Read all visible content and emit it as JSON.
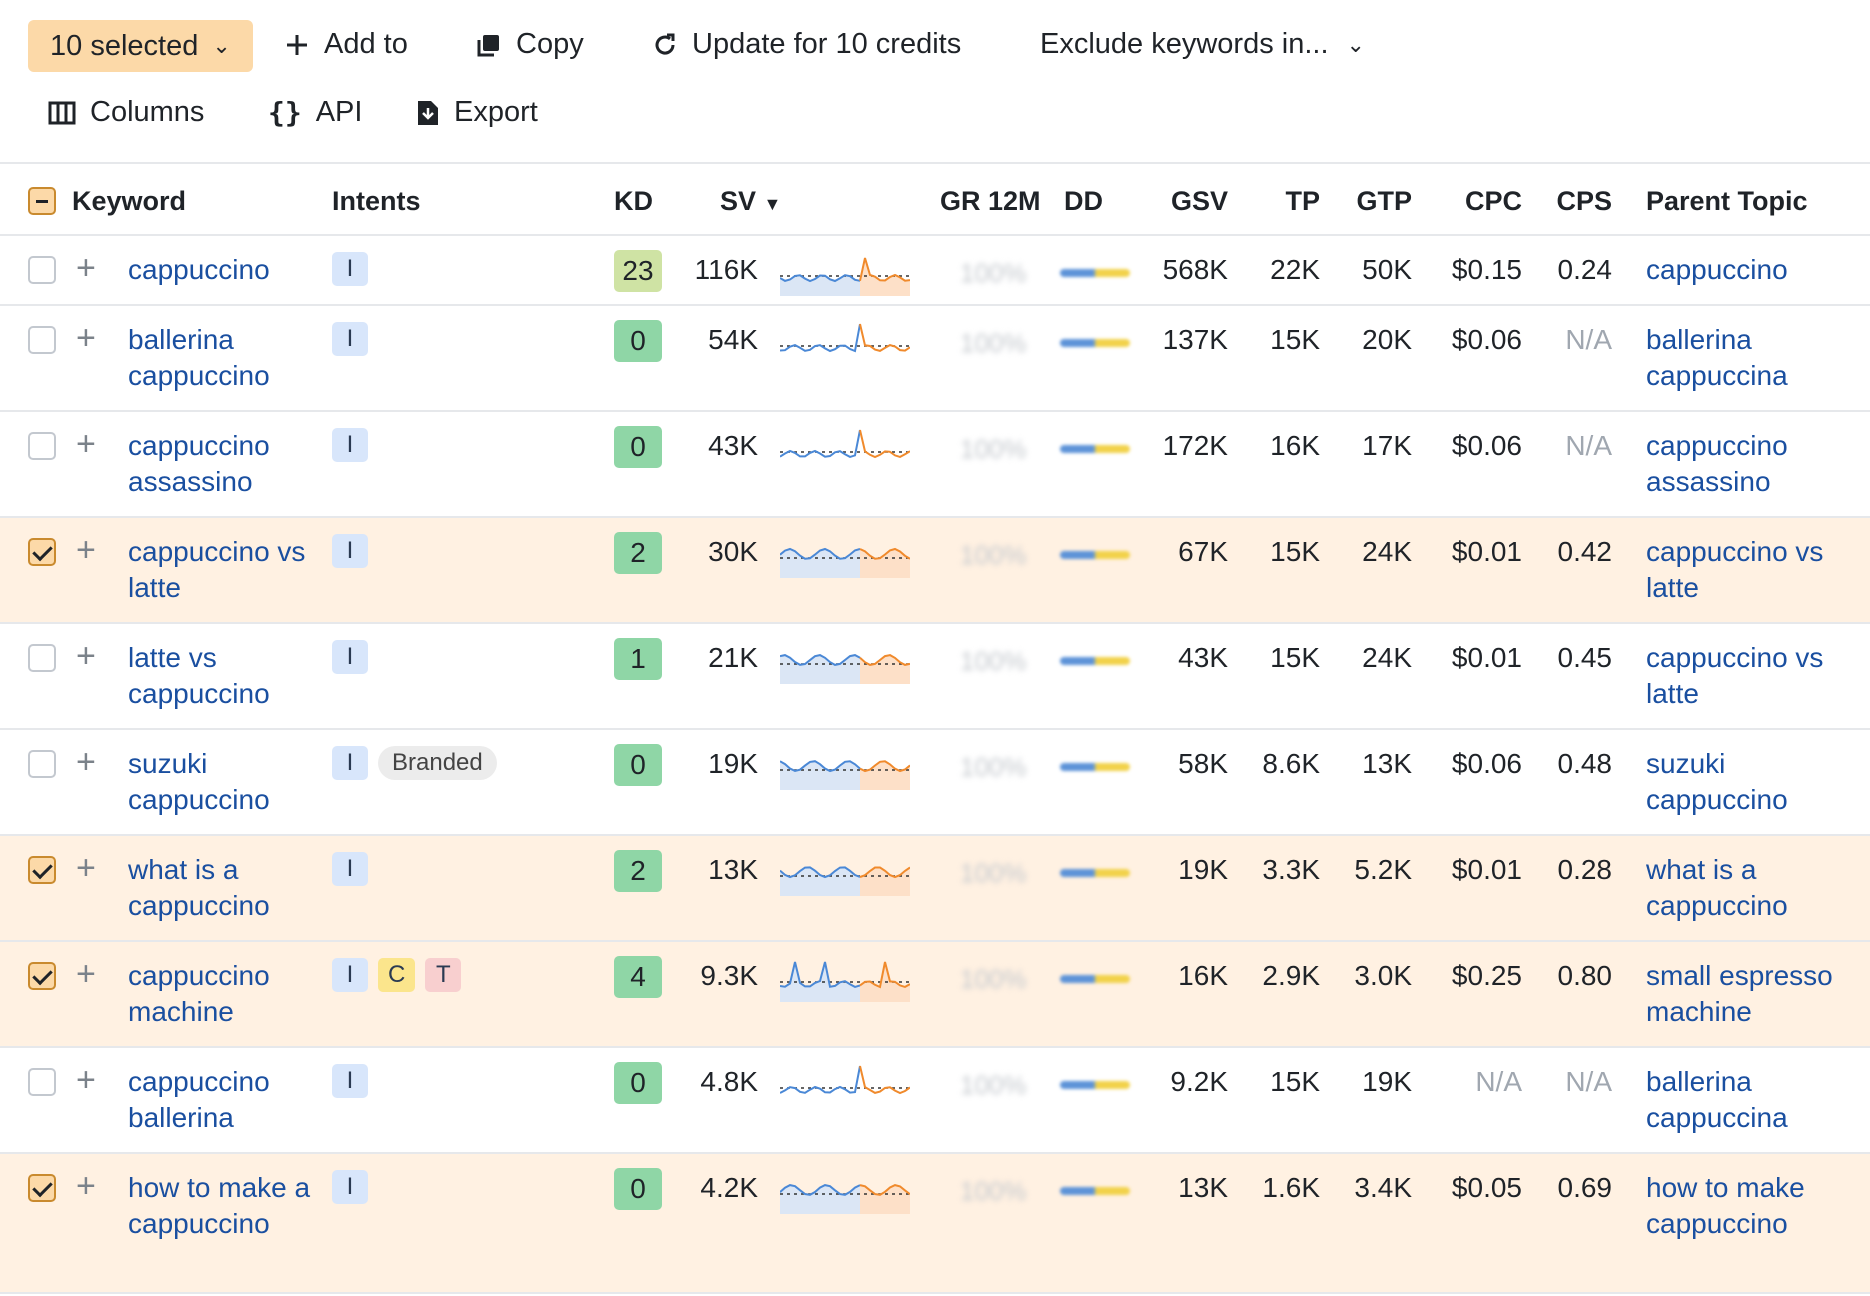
{
  "toolbar": {
    "selected_label": "10 selected",
    "add_to_label": "Add to",
    "copy_label": "Copy",
    "update_label": "Update for 10 credits",
    "exclude_label": "Exclude keywords in...",
    "columns_label": "Columns",
    "api_label": "API",
    "export_label": "Export"
  },
  "table": {
    "headers": {
      "keyword": "Keyword",
      "intents": "Intents",
      "kd": "KD",
      "sv": "SV",
      "gr12m": "GR 12M",
      "dd": "DD",
      "gsv": "GSV",
      "tp": "TP",
      "gtp": "GTP",
      "cpc": "CPC",
      "cps": "CPS",
      "parent_topic": "Parent Topic"
    },
    "rows": [
      {
        "selected": false,
        "keyword": "cappuccino",
        "intents": [
          "I"
        ],
        "kd": "23",
        "sv": "116K",
        "gr12m": "100%",
        "gsv": "568K",
        "tp": "22K",
        "gtp": "50K",
        "cpc": "$0.15",
        "cps": "0.24",
        "parent_topic": "cappuccino"
      },
      {
        "selected": false,
        "keyword": "ballerina cappuccino",
        "intents": [
          "I"
        ],
        "kd": "0",
        "sv": "54K",
        "gr12m": "100%",
        "gsv": "137K",
        "tp": "15K",
        "gtp": "20K",
        "cpc": "$0.06",
        "cps": "N/A",
        "parent_topic": "ballerina cappuccina"
      },
      {
        "selected": false,
        "keyword": "cappuccino assassino",
        "intents": [
          "I"
        ],
        "kd": "0",
        "sv": "43K",
        "gr12m": "100%",
        "gsv": "172K",
        "tp": "16K",
        "gtp": "17K",
        "cpc": "$0.06",
        "cps": "N/A",
        "parent_topic": "cappuccino assassino"
      },
      {
        "selected": true,
        "keyword": "cappuccino vs latte",
        "intents": [
          "I"
        ],
        "kd": "2",
        "sv": "30K",
        "gr12m": "100%",
        "gsv": "67K",
        "tp": "15K",
        "gtp": "24K",
        "cpc": "$0.01",
        "cps": "0.42",
        "parent_topic": "cappuccino vs latte"
      },
      {
        "selected": false,
        "keyword": "latte vs cappuccino",
        "intents": [
          "I"
        ],
        "kd": "1",
        "sv": "21K",
        "gr12m": "100%",
        "gsv": "43K",
        "tp": "15K",
        "gtp": "24K",
        "cpc": "$0.01",
        "cps": "0.45",
        "parent_topic": "cappuccino vs latte"
      },
      {
        "selected": false,
        "keyword": "suzuki cappuccino",
        "intents": [
          "I",
          "Branded"
        ],
        "kd": "0",
        "sv": "19K",
        "gr12m": "100%",
        "gsv": "58K",
        "tp": "8.6K",
        "gtp": "13K",
        "cpc": "$0.06",
        "cps": "0.48",
        "parent_topic": "suzuki cappuccino"
      },
      {
        "selected": true,
        "keyword": "what is a cappuccino",
        "intents": [
          "I"
        ],
        "kd": "2",
        "sv": "13K",
        "gr12m": "100%",
        "gsv": "19K",
        "tp": "3.3K",
        "gtp": "5.2K",
        "cpc": "$0.01",
        "cps": "0.28",
        "parent_topic": "what is a cappuccino"
      },
      {
        "selected": true,
        "keyword": "cappuccino machine",
        "intents": [
          "I",
          "C",
          "T"
        ],
        "kd": "4",
        "sv": "9.3K",
        "gr12m": "100%",
        "gsv": "16K",
        "tp": "2.9K",
        "gtp": "3.0K",
        "cpc": "$0.25",
        "cps": "0.80",
        "parent_topic": "small espresso machine"
      },
      {
        "selected": false,
        "keyword": "cappuccino ballerina",
        "intents": [
          "I"
        ],
        "kd": "0",
        "sv": "4.8K",
        "gr12m": "100%",
        "gsv": "9.2K",
        "tp": "15K",
        "gtp": "19K",
        "cpc": "N/A",
        "cps": "N/A",
        "parent_topic": "ballerina cappuccina"
      },
      {
        "selected": true,
        "keyword": "how to make a cappuccino",
        "intents": [
          "I"
        ],
        "kd": "0",
        "sv": "4.2K",
        "gr12m": "100%",
        "gsv": "13K",
        "tp": "1.6K",
        "gtp": "3.4K",
        "cpc": "$0.05",
        "cps": "0.69",
        "parent_topic": "how to make cappuccino"
      }
    ]
  },
  "colors": {
    "selected_row_bg": "#fff1e2",
    "selected_button_bg": "#fcd9a8",
    "link_blue": "#1a4fa0",
    "kd_low": "#8fd6a6",
    "kd_mid": "#cfe3a4",
    "spark_blue": "#4a88d6",
    "spark_orange": "#f08a2c"
  }
}
